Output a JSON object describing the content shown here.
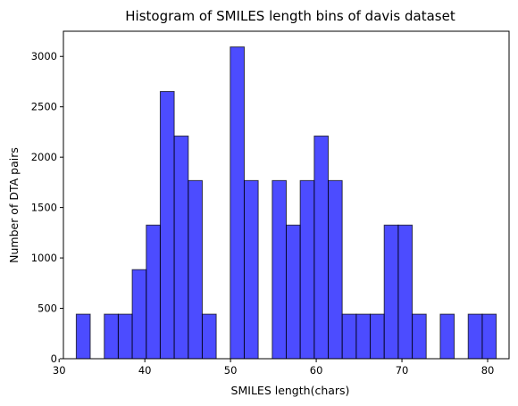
{
  "chart_data": {
    "type": "bar",
    "title": "Histogram of SMILES length bins of davis dataset",
    "xlabel": "SMILES length(chars)",
    "ylabel": "Number of DTA pairs",
    "xlim": [
      30.5,
      82.5
    ],
    "ylim": [
      0,
      3250
    ],
    "xticks": [
      30,
      40,
      50,
      60,
      70,
      80
    ],
    "yticks": [
      0,
      500,
      1000,
      1500,
      2000,
      2500,
      3000
    ],
    "bin_edges": [
      32.0,
      33.63,
      35.27,
      36.9,
      38.53,
      40.17,
      41.8,
      43.43,
      45.07,
      46.7,
      48.33,
      49.97,
      51.6,
      53.23,
      54.87,
      56.5,
      58.13,
      59.77,
      61.4,
      63.03,
      64.67,
      66.3,
      67.93,
      69.57,
      71.2,
      72.83,
      74.47,
      76.1,
      77.73,
      79.37,
      81.0
    ],
    "values": [
      442,
      0,
      442,
      442,
      884,
      1326,
      2652,
      2210,
      1768,
      442,
      0,
      3094,
      1768,
      0,
      1768,
      1326,
      1768,
      2210,
      1768,
      442,
      442,
      442,
      1326,
      1326,
      442,
      0,
      442,
      0,
      442,
      442
    ],
    "bar_color": "#0000ff",
    "bar_alpha": 0.7,
    "edge_color": "#000000",
    "grid": false
  }
}
